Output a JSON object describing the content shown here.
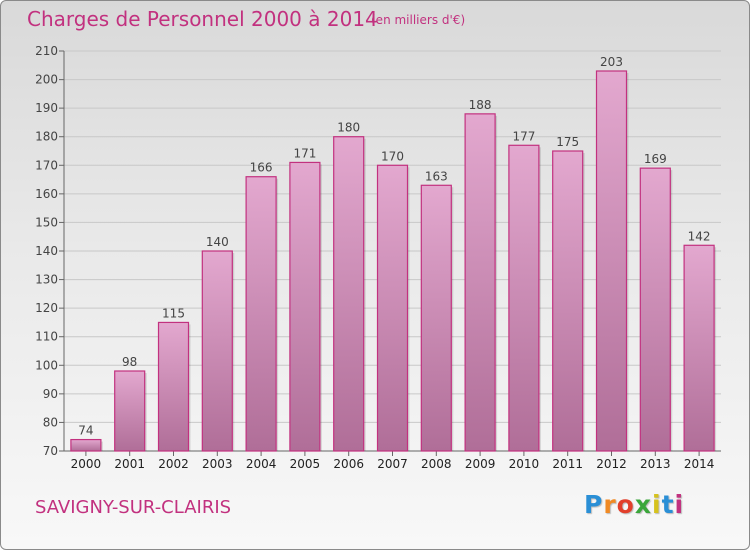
{
  "header": {
    "title": "Charges de Personnel 2000 à 2014",
    "subtitle": "(en milliers d'€)"
  },
  "footer": {
    "commune": "SAVIGNY-SUR-CLAIRIS",
    "logo_letters": [
      "P",
      "r",
      "o",
      "x",
      "i",
      "t",
      "i"
    ],
    "logo_colors": [
      "#2a8fd6",
      "#f08a24",
      "#e23f2b",
      "#3aa63a",
      "#d6c21e",
      "#2a8fd6",
      "#c2317f"
    ]
  },
  "chart_data": {
    "type": "bar",
    "title": "Charges de Personnel 2000 à 2014",
    "subtitle": "(en milliers d'€)",
    "xlabel": "",
    "ylabel": "",
    "categories": [
      "2000",
      "2001",
      "2002",
      "2003",
      "2004",
      "2005",
      "2006",
      "2007",
      "2008",
      "2009",
      "2010",
      "2011",
      "2012",
      "2013",
      "2014"
    ],
    "values": [
      74,
      98,
      115,
      140,
      166,
      171,
      180,
      170,
      163,
      188,
      177,
      175,
      203,
      169,
      142
    ],
    "ylim": [
      70,
      210
    ],
    "yticks": [
      70,
      80,
      90,
      100,
      110,
      120,
      130,
      140,
      150,
      160,
      170,
      180,
      190,
      200,
      210
    ],
    "grid": true,
    "bar_color": "#c2317f"
  }
}
